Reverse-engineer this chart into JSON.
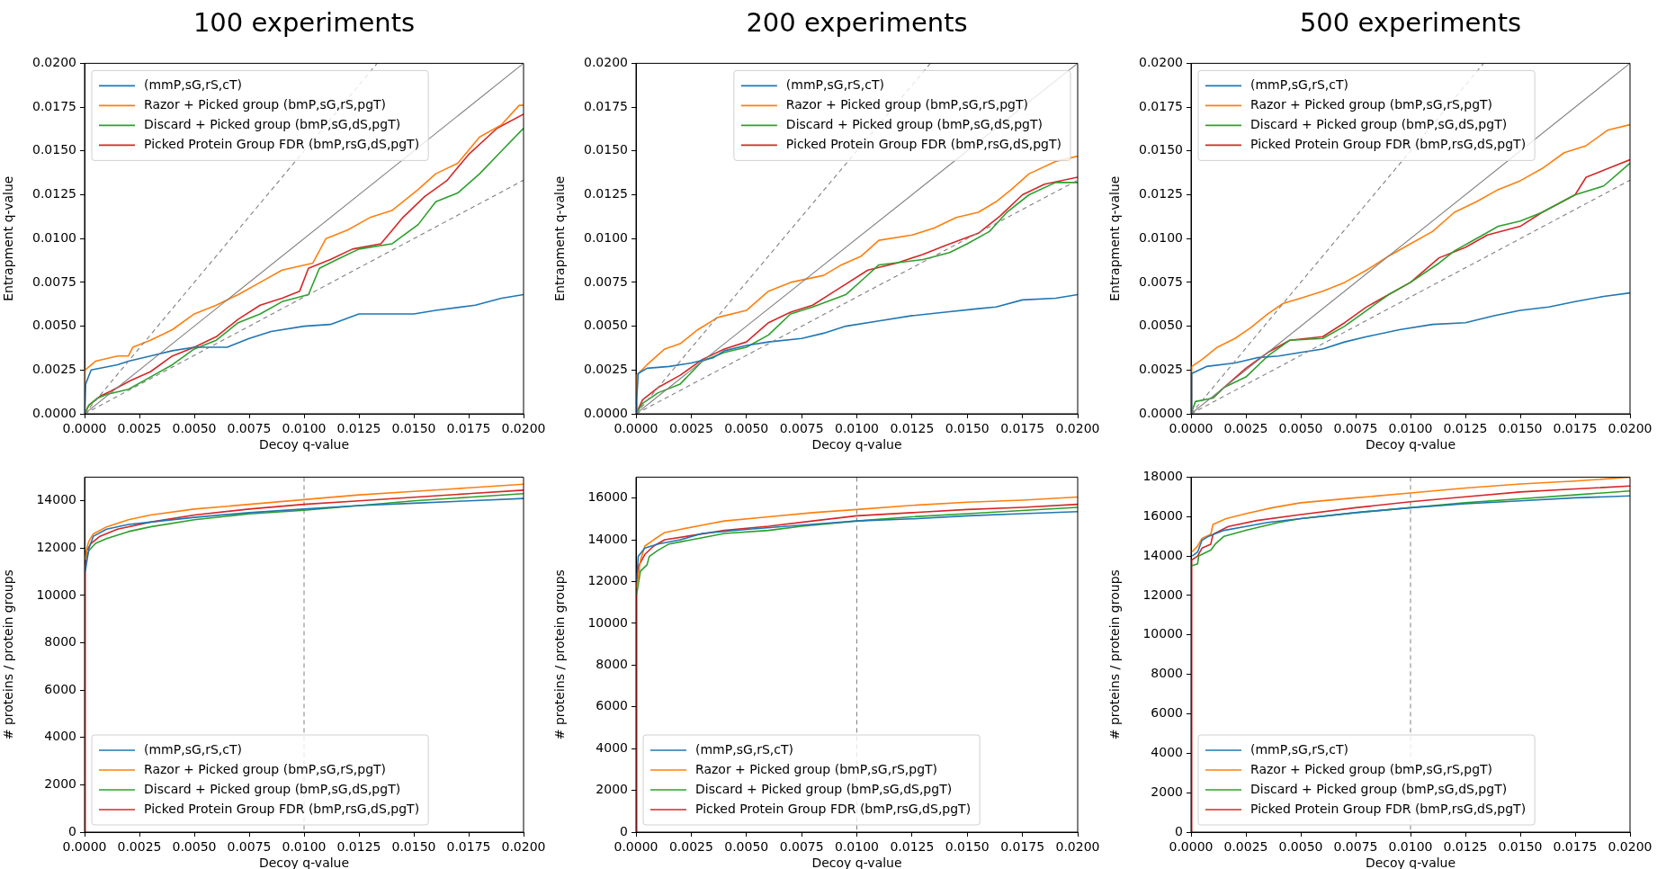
{
  "chart_data": [
    {
      "type": "line",
      "title": "100 experiments",
      "xlabel": "Decoy q-value",
      "ylabel": "Entrapment q-value",
      "legend": "top left",
      "grid": false,
      "xlim": [
        0,
        0.02
      ],
      "ylim": [
        0,
        0.02
      ],
      "xticks": [
        {
          "value": 0,
          "label": "0.0000"
        },
        {
          "value": 0.0025,
          "label": "0.0025"
        },
        {
          "value": 0.005,
          "label": "0.0050"
        },
        {
          "value": 0.0075,
          "label": "0.0075"
        },
        {
          "value": 0.01,
          "label": "0.0100"
        },
        {
          "value": 0.0125,
          "label": "0.0125"
        },
        {
          "value": 0.015,
          "label": "0.0150"
        },
        {
          "value": 0.0175,
          "label": "0.0175"
        },
        {
          "value": 0.02,
          "label": "0.0200"
        }
      ],
      "yticks": [
        {
          "value": 0,
          "label": "0.0000"
        },
        {
          "value": 0.0025,
          "label": "0.0025"
        },
        {
          "value": 0.005,
          "label": "0.0050"
        },
        {
          "value": 0.0075,
          "label": "0.0075"
        },
        {
          "value": 0.01,
          "label": "0.0100"
        },
        {
          "value": 0.0125,
          "label": "0.0125"
        },
        {
          "value": 0.015,
          "label": "0.0150"
        },
        {
          "value": 0.0175,
          "label": "0.0175"
        },
        {
          "value": 0.02,
          "label": "0.0200"
        }
      ],
      "series": [
        {
          "type": "line",
          "color": "#808080",
          "x": [
            0,
            0.02
          ],
          "values": [
            0,
            0.02
          ]
        },
        {
          "type": "line",
          "color": "#808080",
          "line_style": "dashed",
          "x": [
            0,
            0.01333
          ],
          "values": [
            0,
            0.02
          ]
        },
        {
          "type": "line",
          "color": "#808080",
          "line_style": "dashed",
          "x": [
            0,
            0.02
          ],
          "values": [
            0,
            0.01333
          ]
        },
        {
          "name": "(mmP,sG,rS,cT)",
          "color": "#1f77b4",
          "x": [
            0,
            5e-05,
            0.0003,
            0.0015,
            0.002,
            0.003,
            0.004,
            0.005,
            0.0065,
            0.0075,
            0.0085,
            0.01,
            0.0112,
            0.0125,
            0.015,
            0.016,
            0.0178,
            0.019,
            0.02
          ],
          "values": [
            0,
            0.0017,
            0.0025,
            0.0028,
            0.003,
            0.0033,
            0.0036,
            0.0038,
            0.0038,
            0.0043,
            0.0047,
            0.005,
            0.0051,
            0.0057,
            0.0057,
            0.0059,
            0.0062,
            0.0066,
            0.0068
          ]
        },
        {
          "name": "Razor + Picked group (bmP,sG,rS,pgT)",
          "color": "#ff7f0e",
          "x": [
            0,
            2e-05,
            0.0005,
            0.0015,
            0.002,
            0.0022,
            0.003,
            0.004,
            0.005,
            0.006,
            0.007,
            0.008,
            0.009,
            0.0104,
            0.011,
            0.012,
            0.013,
            0.014,
            0.0152,
            0.016,
            0.017,
            0.018,
            0.019,
            0.0198,
            0.02
          ],
          "values": [
            0,
            0.0025,
            0.003,
            0.0033,
            0.0033,
            0.0038,
            0.0042,
            0.0048,
            0.0057,
            0.0062,
            0.0068,
            0.0075,
            0.0082,
            0.0086,
            0.01,
            0.0105,
            0.0112,
            0.0116,
            0.0128,
            0.0137,
            0.0143,
            0.0158,
            0.0165,
            0.0176,
            0.0176
          ]
        },
        {
          "name": "Discard + Picked group (bmP,sG,dS,pgT)",
          "color": "#2ca02c",
          "x": [
            0,
            0.0002,
            0.0006,
            0.001,
            0.002,
            0.003,
            0.004,
            0.005,
            0.006,
            0.007,
            0.008,
            0.009,
            0.0102,
            0.0107,
            0.0115,
            0.0125,
            0.014,
            0.0152,
            0.016,
            0.017,
            0.018,
            0.019,
            0.02
          ],
          "values": [
            0,
            0.0005,
            0.0009,
            0.0011,
            0.0014,
            0.0021,
            0.0028,
            0.0037,
            0.0042,
            0.0052,
            0.0057,
            0.0064,
            0.0068,
            0.0083,
            0.0088,
            0.0094,
            0.0097,
            0.0108,
            0.0121,
            0.0126,
            0.0137,
            0.015,
            0.0163
          ]
        },
        {
          "name": "Picked Protein Group FDR (bmP,rsG,dS,pgT)",
          "color": "#d62728",
          "x": [
            0,
            0.0002,
            0.0007,
            0.0012,
            0.0021,
            0.003,
            0.004,
            0.005,
            0.006,
            0.007,
            0.008,
            0.009,
            0.0098,
            0.0102,
            0.0112,
            0.0122,
            0.0135,
            0.0145,
            0.0155,
            0.0165,
            0.0175,
            0.0188,
            0.02
          ],
          "values": [
            0,
            0.0005,
            0.001,
            0.0013,
            0.0019,
            0.0024,
            0.0033,
            0.0038,
            0.0044,
            0.0054,
            0.0062,
            0.0066,
            0.007,
            0.0083,
            0.0088,
            0.0094,
            0.0097,
            0.0112,
            0.0124,
            0.0133,
            0.0148,
            0.0163,
            0.0171
          ]
        }
      ]
    },
    {
      "type": "line",
      "title": "200 experiments",
      "xlabel": "Decoy q-value",
      "ylabel": "Entrapment q-value",
      "legend": "top right",
      "grid": false,
      "xlim": [
        0,
        0.02
      ],
      "ylim": [
        0,
        0.02
      ],
      "xticks": [
        {
          "value": 0,
          "label": "0.0000"
        },
        {
          "value": 0.0025,
          "label": "0.0025"
        },
        {
          "value": 0.005,
          "label": "0.0050"
        },
        {
          "value": 0.0075,
          "label": "0.0075"
        },
        {
          "value": 0.01,
          "label": "0.0100"
        },
        {
          "value": 0.0125,
          "label": "0.0125"
        },
        {
          "value": 0.015,
          "label": "0.0150"
        },
        {
          "value": 0.0175,
          "label": "0.0175"
        },
        {
          "value": 0.02,
          "label": "0.0200"
        }
      ],
      "yticks": [
        {
          "value": 0,
          "label": "0.0000"
        },
        {
          "value": 0.0025,
          "label": "0.0025"
        },
        {
          "value": 0.005,
          "label": "0.0050"
        },
        {
          "value": 0.0075,
          "label": "0.0075"
        },
        {
          "value": 0.01,
          "label": "0.0100"
        },
        {
          "value": 0.0125,
          "label": "0.0125"
        },
        {
          "value": 0.015,
          "label": "0.0150"
        },
        {
          "value": 0.0175,
          "label": "0.0175"
        },
        {
          "value": 0.02,
          "label": "0.0200"
        }
      ],
      "series": [
        {
          "type": "line",
          "color": "#808080",
          "x": [
            0,
            0.02
          ],
          "values": [
            0,
            0.02
          ]
        },
        {
          "type": "line",
          "color": "#808080",
          "line_style": "dashed",
          "x": [
            0,
            0.01333
          ],
          "values": [
            0,
            0.02
          ]
        },
        {
          "type": "line",
          "color": "#808080",
          "line_style": "dashed",
          "x": [
            0,
            0.02
          ],
          "values": [
            0,
            0.01333
          ]
        },
        {
          "name": "(mmP,sG,rS,cT)",
          "color": "#1f77b4",
          "x": [
            0,
            3e-05,
            0.0001,
            0.0005,
            0.0015,
            0.0025,
            0.0035,
            0.004,
            0.005,
            0.006,
            0.0075,
            0.0085,
            0.0095,
            0.011,
            0.0125,
            0.014,
            0.0155,
            0.0163,
            0.0175,
            0.019,
            0.02
          ],
          "values": [
            0,
            0.0008,
            0.0023,
            0.0026,
            0.0027,
            0.0029,
            0.0032,
            0.0036,
            0.0039,
            0.0041,
            0.0043,
            0.0046,
            0.005,
            0.0053,
            0.0056,
            0.0058,
            0.006,
            0.0061,
            0.0065,
            0.0066,
            0.0068
          ]
        },
        {
          "name": "Razor + Picked group (bmP,sG,rS,pgT)",
          "color": "#ff7f0e",
          "x": [
            0,
            3e-05,
            0.0005,
            0.0013,
            0.002,
            0.0028,
            0.0037,
            0.005,
            0.006,
            0.007,
            0.0085,
            0.0093,
            0.0102,
            0.011,
            0.0125,
            0.0135,
            0.0145,
            0.0155,
            0.0163,
            0.017,
            0.0178,
            0.019,
            0.02
          ],
          "values": [
            0,
            0.0022,
            0.0028,
            0.0037,
            0.004,
            0.0048,
            0.0055,
            0.0059,
            0.007,
            0.0075,
            0.0079,
            0.0085,
            0.009,
            0.0099,
            0.0102,
            0.0106,
            0.0112,
            0.0115,
            0.0121,
            0.0128,
            0.0137,
            0.0144,
            0.0147
          ]
        },
        {
          "name": "Discard + Picked group (bmP,sG,dS,pgT)",
          "color": "#2ca02c",
          "x": [
            0,
            0.0003,
            0.001,
            0.002,
            0.003,
            0.004,
            0.005,
            0.006,
            0.007,
            0.008,
            0.0095,
            0.0103,
            0.011,
            0.013,
            0.0142,
            0.015,
            0.016,
            0.0168,
            0.0178,
            0.019,
            0.02
          ],
          "values": [
            0,
            0.0006,
            0.0012,
            0.0017,
            0.003,
            0.0035,
            0.0038,
            0.0045,
            0.0057,
            0.0061,
            0.0068,
            0.0077,
            0.0085,
            0.0088,
            0.0092,
            0.0097,
            0.0104,
            0.0115,
            0.0125,
            0.0132,
            0.0132
          ]
        },
        {
          "name": "Picked Protein Group FDR (bmP,rsG,dS,pgT)",
          "color": "#d62728",
          "x": [
            0,
            0.0003,
            0.001,
            0.002,
            0.003,
            0.004,
            0.005,
            0.006,
            0.007,
            0.008,
            0.009,
            0.0105,
            0.0118,
            0.013,
            0.014,
            0.0155,
            0.0165,
            0.0175,
            0.0185,
            0.02
          ],
          "values": [
            0,
            0.0008,
            0.0015,
            0.0022,
            0.0031,
            0.0037,
            0.0041,
            0.0052,
            0.0058,
            0.0062,
            0.007,
            0.0082,
            0.0086,
            0.0091,
            0.0096,
            0.0103,
            0.0113,
            0.0125,
            0.0131,
            0.0135
          ]
        }
      ]
    },
    {
      "type": "line",
      "title": "500 experiments",
      "xlabel": "Decoy q-value",
      "ylabel": "Entrapment q-value",
      "legend": "top left",
      "grid": false,
      "xlim": [
        0,
        0.02
      ],
      "ylim": [
        0,
        0.02
      ],
      "xticks": [
        {
          "value": 0,
          "label": "0.0000"
        },
        {
          "value": 0.0025,
          "label": "0.0025"
        },
        {
          "value": 0.005,
          "label": "0.0050"
        },
        {
          "value": 0.0075,
          "label": "0.0075"
        },
        {
          "value": 0.01,
          "label": "0.0100"
        },
        {
          "value": 0.0125,
          "label": "0.0125"
        },
        {
          "value": 0.015,
          "label": "0.0150"
        },
        {
          "value": 0.0175,
          "label": "0.0175"
        },
        {
          "value": 0.02,
          "label": "0.0200"
        }
      ],
      "yticks": [
        {
          "value": 0,
          "label": "0.0000"
        },
        {
          "value": 0.0025,
          "label": "0.0025"
        },
        {
          "value": 0.005,
          "label": "0.0050"
        },
        {
          "value": 0.0075,
          "label": "0.0075"
        },
        {
          "value": 0.01,
          "label": "0.0100"
        },
        {
          "value": 0.0125,
          "label": "0.0125"
        },
        {
          "value": 0.015,
          "label": "0.0150"
        },
        {
          "value": 0.0175,
          "label": "0.0175"
        },
        {
          "value": 0.02,
          "label": "0.0200"
        }
      ],
      "series": [
        {
          "type": "line",
          "color": "#808080",
          "x": [
            0,
            0.02
          ],
          "values": [
            0,
            0.02
          ]
        },
        {
          "type": "line",
          "color": "#808080",
          "line_style": "dashed",
          "x": [
            0,
            0.01333
          ],
          "values": [
            0,
            0.02
          ]
        },
        {
          "type": "line",
          "color": "#808080",
          "line_style": "dashed",
          "x": [
            0,
            0.02
          ],
          "values": [
            0,
            0.01333
          ]
        },
        {
          "name": "(mmP,sG,rS,cT)",
          "color": "#1f77b4",
          "x": [
            0,
            3e-05,
            0.0007,
            0.002,
            0.003,
            0.004,
            0.005,
            0.006,
            0.007,
            0.008,
            0.0095,
            0.011,
            0.0125,
            0.0138,
            0.015,
            0.0163,
            0.0175,
            0.0188,
            0.02
          ],
          "values": [
            0,
            0.0023,
            0.0027,
            0.0029,
            0.0032,
            0.0033,
            0.0035,
            0.0037,
            0.0041,
            0.0044,
            0.0048,
            0.0051,
            0.0052,
            0.0056,
            0.0059,
            0.0061,
            0.0064,
            0.0067,
            0.0069
          ]
        },
        {
          "name": "Razor + Picked group (bmP,sG,rS,pgT)",
          "color": "#ff7f0e",
          "x": [
            0,
            3e-05,
            0.0005,
            0.0012,
            0.002,
            0.0027,
            0.0035,
            0.0042,
            0.005,
            0.006,
            0.007,
            0.008,
            0.009,
            0.01,
            0.011,
            0.012,
            0.013,
            0.014,
            0.015,
            0.016,
            0.017,
            0.018,
            0.019,
            0.02
          ],
          "values": [
            0,
            0.0027,
            0.0031,
            0.0038,
            0.0043,
            0.0049,
            0.0057,
            0.0063,
            0.0066,
            0.007,
            0.0075,
            0.0082,
            0.009,
            0.0097,
            0.0104,
            0.0115,
            0.0121,
            0.0128,
            0.0133,
            0.014,
            0.0149,
            0.0153,
            0.0162,
            0.0165
          ]
        },
        {
          "name": "Discard + Picked group (bmP,sG,dS,pgT)",
          "color": "#2ca02c",
          "x": [
            0,
            0.0002,
            0.001,
            0.0015,
            0.0025,
            0.0035,
            0.0045,
            0.006,
            0.007,
            0.008,
            0.009,
            0.01,
            0.0113,
            0.012,
            0.013,
            0.014,
            0.015,
            0.016,
            0.0175,
            0.0188,
            0.02
          ],
          "values": [
            0,
            0.0007,
            0.0009,
            0.0015,
            0.0021,
            0.0033,
            0.0042,
            0.0043,
            0.005,
            0.0059,
            0.0068,
            0.0075,
            0.0086,
            0.0093,
            0.01,
            0.0107,
            0.011,
            0.0115,
            0.0125,
            0.013,
            0.0143
          ]
        },
        {
          "name": "Picked Protein Group FDR (bmP,rsG,dS,pgT)",
          "color": "#d62728",
          "x": [
            0.001,
            0.0015,
            0.0025,
            0.0035,
            0.0045,
            0.006,
            0.007,
            0.008,
            0.009,
            0.01,
            0.0113,
            0.0125,
            0.0135,
            0.015,
            0.016,
            0.0175,
            0.018,
            0.019,
            0.02
          ],
          "values": [
            0.0009,
            0.0015,
            0.0026,
            0.0035,
            0.0042,
            0.0044,
            0.0052,
            0.0061,
            0.0068,
            0.0075,
            0.0089,
            0.0095,
            0.0102,
            0.0107,
            0.0115,
            0.0125,
            0.0135,
            0.014,
            0.0145
          ]
        }
      ]
    },
    {
      "type": "line",
      "xlabel": "Decoy q-value",
      "ylabel": "# proteins / protein groups",
      "legend": "bottom left",
      "grid": false,
      "xlim": [
        0,
        0.02
      ],
      "ylim": [
        0,
        15000
      ],
      "xticks": [
        {
          "value": 0,
          "label": "0.0000"
        },
        {
          "value": 0.0025,
          "label": "0.0025"
        },
        {
          "value": 0.005,
          "label": "0.0050"
        },
        {
          "value": 0.0075,
          "label": "0.0075"
        },
        {
          "value": 0.01,
          "label": "0.0100"
        },
        {
          "value": 0.0125,
          "label": "0.0125"
        },
        {
          "value": 0.015,
          "label": "0.0150"
        },
        {
          "value": 0.0175,
          "label": "0.0175"
        },
        {
          "value": 0.02,
          "label": "0.0200"
        }
      ],
      "yticks": [
        0,
        2000,
        4000,
        6000,
        8000,
        10000,
        12000,
        14000
      ],
      "ref_lines": [
        {
          "axis": "x",
          "value": 0.01,
          "color": "#808080",
          "line_style": "dashed"
        }
      ],
      "series": [
        {
          "name": "(mmP,sG,rS,cT)",
          "color": "#1f77b4",
          "x": [
            3e-05,
            0.0002,
            0.0004,
            0.001,
            0.002,
            0.003,
            0.005,
            0.0075,
            0.01,
            0.0125,
            0.015,
            0.0175,
            0.02
          ],
          "values": [
            11000,
            12000,
            12500,
            12800,
            13000,
            13100,
            13300,
            13500,
            13650,
            13800,
            13900,
            14000,
            14100
          ]
        },
        {
          "name": "Razor + Picked group (bmP,sG,rS,pgT)",
          "color": "#ff7f0e",
          "x": [
            3e-05,
            0.0001,
            0.0002,
            0.0004,
            0.001,
            0.002,
            0.003,
            0.005,
            0.0075,
            0.01,
            0.0125,
            0.015,
            0.0175,
            0.02
          ],
          "values": [
            11500,
            12000,
            12300,
            12600,
            12900,
            13200,
            13400,
            13650,
            13850,
            14050,
            14250,
            14400,
            14550,
            14700
          ]
        },
        {
          "name": "Discard + Picked group (bmP,sG,dS,pgT)",
          "color": "#2ca02c",
          "x": [
            0.0001,
            0.0002,
            0.0005,
            0.001,
            0.002,
            0.003,
            0.005,
            0.0075,
            0.01,
            0.0125,
            0.015,
            0.0175,
            0.02
          ],
          "values": [
            11600,
            11900,
            12200,
            12400,
            12700,
            12900,
            13200,
            13450,
            13600,
            13800,
            14000,
            14150,
            14300
          ]
        },
        {
          "name": "Picked Protein Group FDR (bmP,rsG,dS,pgT)",
          "color": "#d62728",
          "x": [
            0,
            3e-05,
            0.0001,
            0.0003,
            0.0007,
            0.0015,
            0.003,
            0.005,
            0.0075,
            0.01,
            0.0125,
            0.015,
            0.0175,
            0.02
          ],
          "values": [
            0,
            11200,
            11900,
            12200,
            12500,
            12800,
            13100,
            13400,
            13650,
            13850,
            14000,
            14150,
            14300,
            14450
          ]
        }
      ]
    },
    {
      "type": "line",
      "xlabel": "Decoy q-value",
      "ylabel": "# proteins / protein groups",
      "legend": "bottom left",
      "grid": false,
      "xlim": [
        0,
        0.02
      ],
      "ylim": [
        0,
        17000
      ],
      "xticks": [
        {
          "value": 0,
          "label": "0.0000"
        },
        {
          "value": 0.0025,
          "label": "0.0025"
        },
        {
          "value": 0.005,
          "label": "0.0050"
        },
        {
          "value": 0.0075,
          "label": "0.0075"
        },
        {
          "value": 0.01,
          "label": "0.0100"
        },
        {
          "value": 0.0125,
          "label": "0.0125"
        },
        {
          "value": 0.015,
          "label": "0.0150"
        },
        {
          "value": 0.0175,
          "label": "0.0175"
        },
        {
          "value": 0.02,
          "label": "0.0200"
        }
      ],
      "yticks": [
        0,
        2000,
        4000,
        6000,
        8000,
        10000,
        12000,
        14000,
        16000
      ],
      "ref_lines": [
        {
          "axis": "x",
          "value": 0.01,
          "color": "#808080",
          "line_style": "dashed"
        }
      ],
      "series": [
        {
          "name": "(mmP,sG,rS,cT)",
          "color": "#1f77b4",
          "x": [
            3e-05,
            0.0001,
            0.0004,
            0.001,
            0.002,
            0.003,
            0.005,
            0.0075,
            0.01,
            0.0125,
            0.015,
            0.0175,
            0.02
          ],
          "values": [
            12000,
            13200,
            13600,
            13800,
            14000,
            14300,
            14500,
            14700,
            14900,
            15000,
            15150,
            15250,
            15350
          ]
        },
        {
          "name": "Razor + Picked group (bmP,sG,rS,pgT)",
          "color": "#ff7f0e",
          "x": [
            3e-05,
            0.0002,
            0.0004,
            0.0008,
            0.0013,
            0.002,
            0.003,
            0.004,
            0.006,
            0.008,
            0.01,
            0.0125,
            0.015,
            0.0175,
            0.02
          ],
          "values": [
            11700,
            13000,
            13700,
            14000,
            14350,
            14500,
            14700,
            14900,
            15100,
            15300,
            15450,
            15650,
            15800,
            15900,
            16050
          ]
        },
        {
          "name": "Discard + Picked group (bmP,sG,dS,pgT)",
          "color": "#2ca02c",
          "x": [
            3e-05,
            0.0002,
            0.0005,
            0.0006,
            0.001,
            0.0015,
            0.002,
            0.003,
            0.004,
            0.006,
            0.0075,
            0.01,
            0.0125,
            0.015,
            0.0175,
            0.02
          ],
          "values": [
            11400,
            12500,
            12800,
            13200,
            13500,
            13800,
            13900,
            14100,
            14300,
            14450,
            14650,
            14900,
            15100,
            15250,
            15400,
            15550
          ]
        },
        {
          "name": "Picked Protein Group FDR (bmP,rsG,dS,pgT)",
          "color": "#d62728",
          "x": [
            0,
            3e-05,
            0.0001,
            0.0004,
            0.0008,
            0.0013,
            0.0025,
            0.004,
            0.006,
            0.008,
            0.01,
            0.0125,
            0.015,
            0.0175,
            0.02
          ],
          "values": [
            0,
            12000,
            12700,
            13300,
            13700,
            14000,
            14200,
            14450,
            14650,
            14900,
            15150,
            15300,
            15450,
            15550,
            15700
          ]
        }
      ]
    },
    {
      "type": "line",
      "xlabel": "Decoy q-value",
      "ylabel": "# proteins / protein groups",
      "legend": "bottom left",
      "grid": false,
      "xlim": [
        0,
        0.02
      ],
      "ylim": [
        0,
        18000
      ],
      "xticks": [
        {
          "value": 0,
          "label": "0.0000"
        },
        {
          "value": 0.0025,
          "label": "0.0025"
        },
        {
          "value": 0.005,
          "label": "0.0050"
        },
        {
          "value": 0.0075,
          "label": "0.0075"
        },
        {
          "value": 0.01,
          "label": "0.0100"
        },
        {
          "value": 0.0125,
          "label": "0.0125"
        },
        {
          "value": 0.015,
          "label": "0.0150"
        },
        {
          "value": 0.0175,
          "label": "0.0175"
        },
        {
          "value": 0.02,
          "label": "0.0200"
        }
      ],
      "yticks": [
        0,
        2000,
        4000,
        6000,
        8000,
        10000,
        12000,
        14000,
        16000,
        18000
      ],
      "ref_lines": [
        {
          "axis": "x",
          "value": 0.01,
          "color": "#808080",
          "line_style": "dashed"
        }
      ],
      "series": [
        {
          "name": "(mmP,sG,rS,cT)",
          "color": "#1f77b4",
          "x": [
            5e-05,
            0.0003,
            0.0005,
            0.0008,
            0.0015,
            0.0025,
            0.0035,
            0.005,
            0.0075,
            0.01,
            0.0125,
            0.015,
            0.0175,
            0.02
          ],
          "values": [
            14000,
            14200,
            14800,
            15000,
            15300,
            15500,
            15700,
            15900,
            16200,
            16450,
            16650,
            16800,
            16950,
            17050
          ]
        },
        {
          "name": "Razor + Picked group (bmP,sG,rS,pgT)",
          "color": "#ff7f0e",
          "x": [
            3e-05,
            0.0003,
            0.0005,
            0.0009,
            0.001,
            0.0016,
            0.0025,
            0.0037,
            0.005,
            0.0075,
            0.01,
            0.0125,
            0.015,
            0.0175,
            0.02
          ],
          "values": [
            14200,
            14500,
            14900,
            15100,
            15600,
            15900,
            16150,
            16450,
            16700,
            16950,
            17200,
            17450,
            17650,
            17800,
            18000
          ]
        },
        {
          "name": "Discard + Picked group (bmP,sG,dS,pgT)",
          "color": "#2ca02c",
          "x": [
            3e-05,
            0.0003,
            0.00035,
            0.0009,
            0.0011,
            0.0015,
            0.0025,
            0.004,
            0.005,
            0.0075,
            0.01,
            0.0125,
            0.015,
            0.0175,
            0.02
          ],
          "values": [
            13500,
            13600,
            14000,
            14300,
            14600,
            15000,
            15300,
            15700,
            15900,
            16200,
            16450,
            16700,
            16900,
            17100,
            17300
          ]
        },
        {
          "name": "Picked Protein Group FDR (bmP,rsG,dS,pgT)",
          "color": "#d62728",
          "x": [
            0,
            3e-05,
            0.0003,
            0.0005,
            0.0009,
            0.001,
            0.0017,
            0.003,
            0.005,
            0.0075,
            0.01,
            0.0125,
            0.015,
            0.0175,
            0.02
          ],
          "values": [
            0,
            13800,
            14000,
            14400,
            14600,
            15100,
            15500,
            15800,
            16100,
            16450,
            16750,
            17000,
            17250,
            17400,
            17550
          ]
        }
      ]
    }
  ]
}
